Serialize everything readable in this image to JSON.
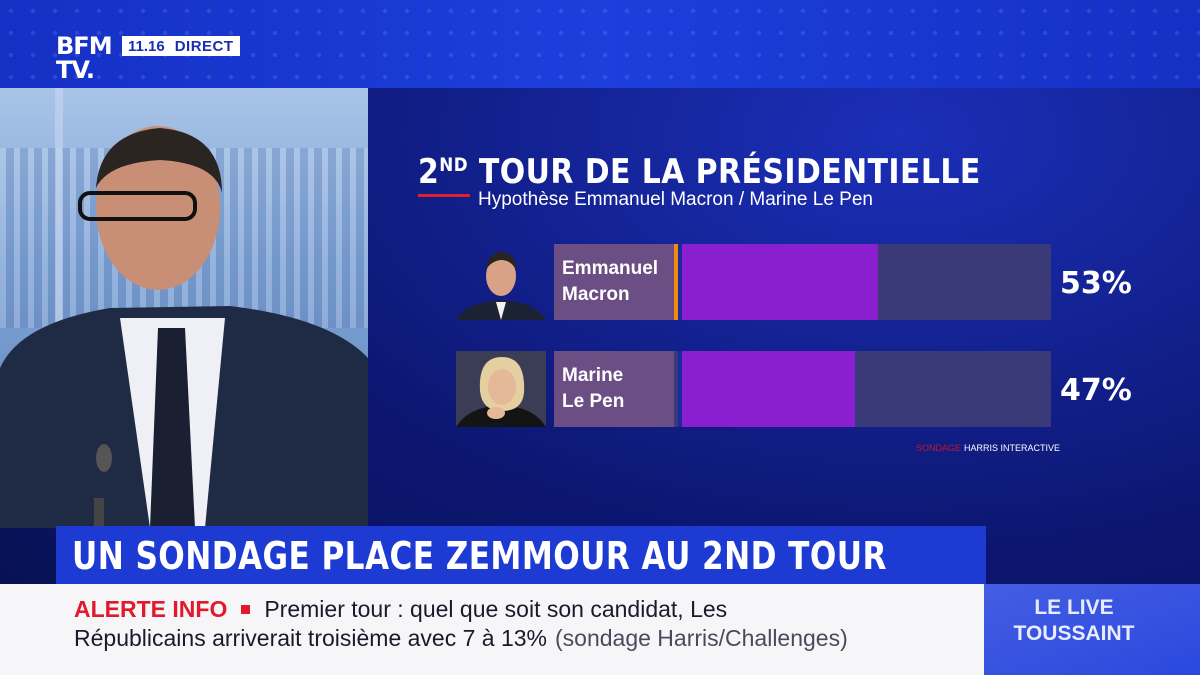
{
  "channel": {
    "logo_line1": "BFM",
    "logo_line2": "TV.",
    "time": "11.16",
    "live_label": "DIRECT"
  },
  "chart_data": {
    "type": "bar",
    "title": "2ND TOUR DE LA PRÉSIDENTIELLE",
    "title_main": "2",
    "title_sup": "ND",
    "title_rest": " TOUR DE LA PRÉSIDENTIELLE",
    "subtitle": "Hypothèse Emmanuel Macron / Marine Le Pen",
    "categories": [
      "Emmanuel Macron",
      "Marine Le Pen"
    ],
    "values": [
      53,
      47
    ],
    "value_labels": [
      "53%",
      "47%"
    ],
    "label_lines": [
      [
        "Emmanuel",
        "Macron"
      ],
      [
        "Marine",
        "Le Pen"
      ]
    ],
    "unit": "%",
    "source_label": "SONDAGE",
    "source": "HARRIS INTERACTIVE",
    "colors": {
      "bar": "#8a1fd0",
      "track": "#3a3a78",
      "label_bg": "#6b4e84",
      "macron_mark": "#f08a10"
    }
  },
  "lower_third": {
    "headline": "UN SONDAGE PLACE ZEMMOUR AU 2ND TOUR"
  },
  "ticker": {
    "alert": "ALERTE INFO",
    "line1": "Premier tour : quel que soit son candidat, Les",
    "line2": "Républicains arriverait troisième avec 7 à 13%",
    "source_note": "(sondage Harris/Challenges)"
  },
  "live_box": {
    "line1": "LE LIVE",
    "line2": "TOUSSAINT"
  }
}
